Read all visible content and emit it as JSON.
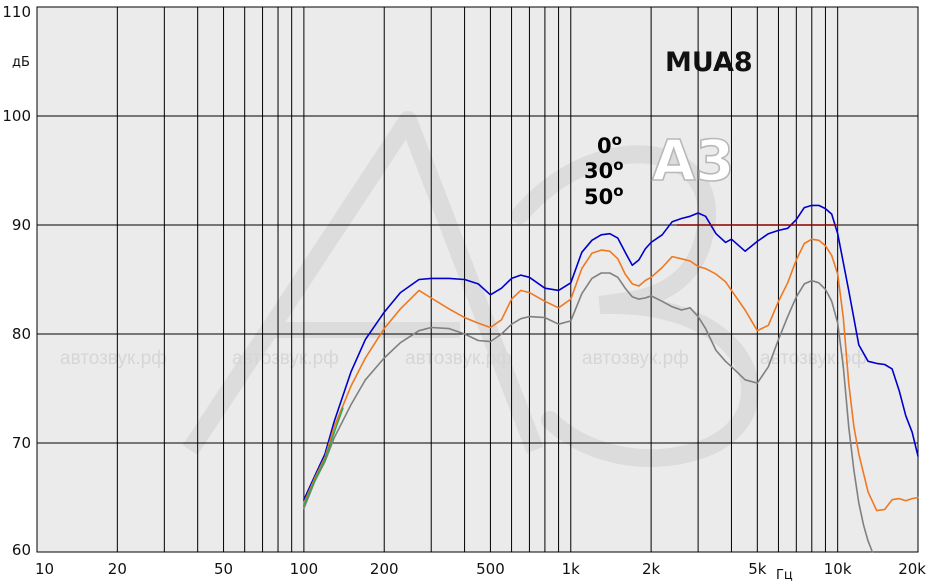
{
  "chart_data": {
    "type": "line",
    "title": "MUA8",
    "xlabel": "Гц",
    "ylabel": "дБ",
    "x_scale": "log",
    "xlim": [
      10,
      20000
    ],
    "ylim": [
      60,
      110
    ],
    "grid": true,
    "x_ticks": [
      {
        "v": 10,
        "label": "10"
      },
      {
        "v": 20,
        "label": "20"
      },
      {
        "v": 50,
        "label": "50"
      },
      {
        "v": 100,
        "label": "100"
      },
      {
        "v": 200,
        "label": "200"
      },
      {
        "v": 500,
        "label": "500"
      },
      {
        "v": 1000,
        "label": "1k"
      },
      {
        "v": 2000,
        "label": "2k"
      },
      {
        "v": 5000,
        "label": "5k"
      },
      {
        "v": 10000,
        "label": "10k"
      },
      {
        "v": 20000,
        "label": "20k"
      }
    ],
    "y_ticks": [
      {
        "v": 60,
        "label": "60"
      },
      {
        "v": 70,
        "label": "70"
      },
      {
        "v": 80,
        "label": "80"
      },
      {
        "v": 90,
        "label": "90"
      },
      {
        "v": 100,
        "label": "100"
      },
      {
        "v": 110,
        "label": "110"
      }
    ],
    "legend_placement": "top-center",
    "series": [
      {
        "name": "0",
        "color": "#0000cc",
        "x": [
          100,
          110,
          120,
          130,
          150,
          170,
          200,
          230,
          270,
          300,
          350,
          400,
          450,
          500,
          550,
          600,
          650,
          700,
          800,
          900,
          1000,
          1100,
          1200,
          1300,
          1400,
          1500,
          1600,
          1700,
          1800,
          1900,
          2000,
          2200,
          2400,
          2600,
          2800,
          3000,
          3200,
          3500,
          3800,
          4000,
          4500,
          5000,
          5500,
          6000,
          6500,
          7000,
          7500,
          8000,
          8500,
          9000,
          9500,
          10000,
          11000,
          12000,
          13000,
          14000,
          15000,
          16000,
          17000,
          18000,
          19000,
          20000
        ],
        "y": [
          64.8,
          67,
          69,
          72,
          76.5,
          79.5,
          82,
          83.8,
          85,
          85.1,
          85.1,
          85,
          84.6,
          83.6,
          84.2,
          85.1,
          85.4,
          85.2,
          84.2,
          84,
          84.7,
          87.5,
          88.6,
          89.1,
          89.2,
          88.8,
          87.5,
          86.3,
          86.8,
          87.8,
          88.4,
          89.1,
          90.3,
          90.6,
          90.8,
          91.1,
          90.8,
          89.2,
          88.4,
          88.7,
          87.6,
          88.5,
          89.2,
          89.5,
          89.7,
          90.5,
          91.6,
          91.8,
          91.8,
          91.5,
          91,
          89.2,
          84,
          79,
          77.5,
          77.3,
          77.2,
          76.8,
          74.8,
          72.5,
          71,
          68.8
        ]
      },
      {
        "name": "30",
        "color": "#f07820",
        "x": [
          100,
          110,
          120,
          130,
          150,
          170,
          200,
          230,
          270,
          300,
          350,
          400,
          450,
          500,
          550,
          600,
          650,
          700,
          800,
          900,
          1000,
          1100,
          1200,
          1300,
          1400,
          1500,
          1600,
          1700,
          1800,
          1900,
          2000,
          2200,
          2400,
          2600,
          2800,
          3000,
          3200,
          3500,
          3800,
          4000,
          4500,
          5000,
          5500,
          6000,
          6500,
          7000,
          7500,
          8000,
          8500,
          9000,
          9500,
          10000,
          10500,
          11000,
          11500,
          12000,
          13000,
          14000,
          15000,
          16000,
          17000,
          18000,
          19000,
          20000
        ],
        "y": [
          64.5,
          66.8,
          68.7,
          71.5,
          75.2,
          77.8,
          80.5,
          82.3,
          84,
          83.3,
          82.3,
          81.5,
          81,
          80.6,
          81.3,
          83.2,
          84,
          83.8,
          83,
          82.4,
          83.2,
          86,
          87.4,
          87.7,
          87.6,
          86.9,
          85.5,
          84.6,
          84.4,
          84.9,
          85.2,
          86.1,
          87.1,
          86.9,
          86.7,
          86.2,
          86,
          85.5,
          84.8,
          84,
          82.2,
          80.3,
          80.8,
          83,
          84.7,
          86.8,
          88.3,
          88.7,
          88.6,
          88.1,
          87.2,
          85.5,
          81.5,
          75.5,
          71.5,
          69,
          65.5,
          63.8,
          63.9,
          64.8,
          64.9,
          64.7,
          64.9,
          65
        ]
      },
      {
        "name": "50",
        "color": "#808080",
        "x": [
          100,
          110,
          120,
          130,
          150,
          170,
          200,
          230,
          270,
          300,
          350,
          400,
          450,
          500,
          550,
          600,
          650,
          700,
          800,
          900,
          1000,
          1100,
          1200,
          1300,
          1400,
          1500,
          1600,
          1700,
          1800,
          1900,
          2000,
          2200,
          2400,
          2600,
          2800,
          3000,
          3200,
          3500,
          3800,
          4000,
          4500,
          5000,
          5500,
          6000,
          6500,
          7000,
          7500,
          8000,
          8500,
          9000,
          9500,
          10000,
          10500,
          11000,
          11500,
          12000,
          12500,
          13000,
          13500
        ],
        "y": [
          64,
          66.5,
          68.3,
          70.5,
          73.5,
          75.8,
          77.8,
          79.2,
          80.3,
          80.6,
          80.5,
          80,
          79.4,
          79.3,
          80,
          80.9,
          81.4,
          81.6,
          81.5,
          80.9,
          81.2,
          83.7,
          85.1,
          85.6,
          85.6,
          85.2,
          84.2,
          83.4,
          83.2,
          83.3,
          83.5,
          83,
          82.5,
          82.2,
          82.4,
          81.6,
          80.5,
          78.5,
          77.5,
          77,
          75.8,
          75.5,
          77,
          79.5,
          81.6,
          83.4,
          84.6,
          84.9,
          84.7,
          84.1,
          83,
          81,
          77,
          71.5,
          67.5,
          64.5,
          62.5,
          61,
          60
        ]
      },
      {
        "name": "",
        "color": "#2fa84f",
        "x": [
          100,
          110,
          120,
          130,
          140
        ],
        "y": [
          64.3,
          66.6,
          68.5,
          71,
          73.2
        ]
      },
      {
        "name": "",
        "color": "#8b0000",
        "x": [
          2500,
          10000
        ],
        "y": [
          90,
          90
        ]
      }
    ]
  },
  "legend": {
    "items": [
      {
        "text": "0",
        "color": "#0000cc"
      },
      {
        "text": "30",
        "color": "#f07820"
      },
      {
        "text": "50",
        "color": "#808080"
      }
    ],
    "degree_mark": "o"
  },
  "watermark": {
    "logo": "A3",
    "text": "автозвук.рф"
  }
}
